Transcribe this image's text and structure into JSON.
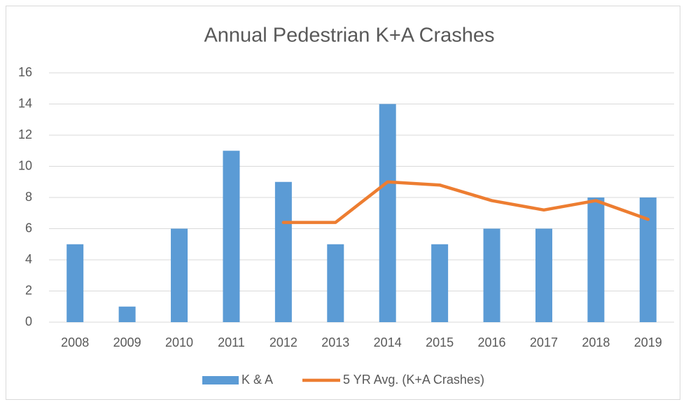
{
  "chart_data": {
    "type": "bar",
    "title": "Annual Pedestrian K+A Crashes",
    "categories": [
      "2008",
      "2009",
      "2010",
      "2011",
      "2012",
      "2013",
      "2014",
      "2015",
      "2016",
      "2017",
      "2018",
      "2019"
    ],
    "series": [
      {
        "name": "K & A",
        "type": "bar",
        "color": "#5b9bd5",
        "values": [
          5,
          1,
          6,
          11,
          9,
          5,
          14,
          5,
          6,
          6,
          8,
          8
        ]
      },
      {
        "name": "5 YR Avg. (K+A Crashes)",
        "type": "line",
        "color": "#ed7d31",
        "values": [
          null,
          null,
          null,
          null,
          6.4,
          6.4,
          9,
          8.8,
          7.8,
          7.2,
          7.8,
          6.6
        ]
      }
    ],
    "ylim": [
      0,
      16
    ],
    "yticks": [
      0,
      2,
      4,
      6,
      8,
      10,
      12,
      14,
      16
    ],
    "grid": true,
    "legend": "bottom"
  }
}
